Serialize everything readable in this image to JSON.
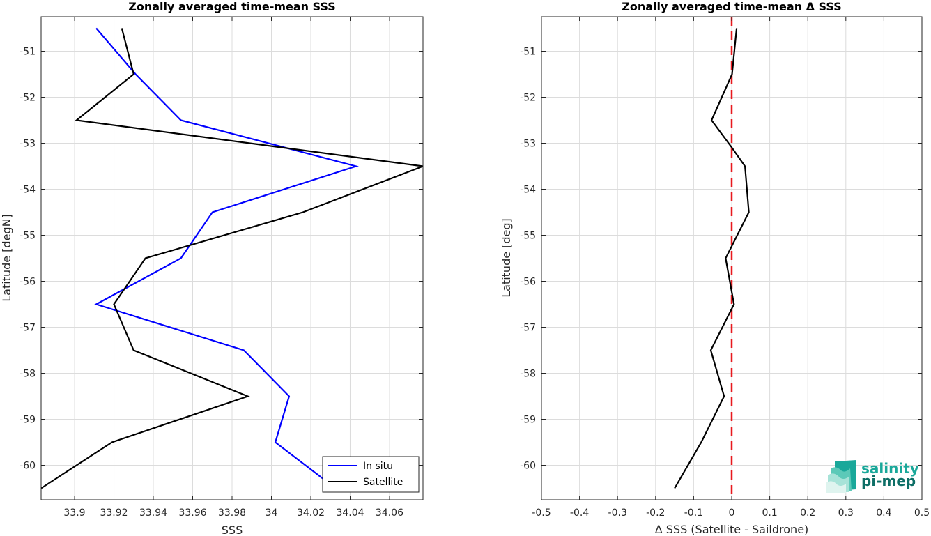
{
  "chart_data": [
    {
      "type": "line",
      "title": "Zonally averaged time-mean SSS",
      "xlabel": "SSS",
      "ylabel": "Latitude [degN]",
      "xlim": [
        33.883,
        34.077
      ],
      "ylim": [
        -60.75,
        -50.25
      ],
      "xticks": [
        33.9,
        33.92,
        33.94,
        33.96,
        33.98,
        34,
        34.02,
        34.04,
        34.06
      ],
      "xtick_labels": [
        "33.9",
        "33.92",
        "33.94",
        "33.96",
        "33.98",
        "34",
        "34.02",
        "34.04",
        "34.06"
      ],
      "yticks": [
        -51,
        -52,
        -53,
        -54,
        -55,
        -56,
        -57,
        -58,
        -59,
        -60
      ],
      "ytick_labels": [
        "-51",
        "-52",
        "-53",
        "-54",
        "-55",
        "-56",
        "-57",
        "-58",
        "-59",
        "-60"
      ],
      "grid": true,
      "legend_position": "bottom-right",
      "series": [
        {
          "name": "In situ",
          "color": "#0000ff",
          "points": [
            {
              "x": 33.911,
              "y": -50.5
            },
            {
              "x": 33.931,
              "y": -51.5
            },
            {
              "x": 33.954,
              "y": -52.5
            },
            {
              "x": 34.043,
              "y": -53.5
            },
            {
              "x": 33.97,
              "y": -54.5
            },
            {
              "x": 33.954,
              "y": -55.5
            },
            {
              "x": 33.911,
              "y": -56.5
            },
            {
              "x": 33.986,
              "y": -57.5
            },
            {
              "x": 34.009,
              "y": -58.5
            },
            {
              "x": 34.002,
              "y": -59.5
            },
            {
              "x": 34.028,
              "y": -60.35
            }
          ]
        },
        {
          "name": "Satellite",
          "color": "#000000",
          "points": [
            {
              "x": 33.924,
              "y": -50.5
            },
            {
              "x": 33.93,
              "y": -51.5
            },
            {
              "x": 33.901,
              "y": -52.5
            },
            {
              "x": 34.077,
              "y": -53.5
            },
            {
              "x": 34.016,
              "y": -54.5
            },
            {
              "x": 33.936,
              "y": -55.5
            },
            {
              "x": 33.92,
              "y": -56.5
            },
            {
              "x": 33.93,
              "y": -57.5
            },
            {
              "x": 33.988,
              "y": -58.5
            },
            {
              "x": 33.919,
              "y": -59.5
            },
            {
              "x": 33.883,
              "y": -60.5
            }
          ]
        }
      ]
    },
    {
      "type": "line",
      "title": "Zonally averaged time-mean Δ SSS",
      "xlabel": "Δ SSS (Satellite - Saildrone)",
      "ylabel": "Latitude [deg]",
      "xlim": [
        -0.5,
        0.5
      ],
      "ylim": [
        -60.75,
        -50.25
      ],
      "xticks": [
        -0.5,
        -0.4,
        -0.3,
        -0.2,
        -0.1,
        0,
        0.1,
        0.2,
        0.3,
        0.4,
        0.5
      ],
      "xtick_labels": [
        "-0.5",
        "-0.4",
        "-0.3",
        "-0.2",
        "-0.1",
        "0",
        "0.1",
        "0.2",
        "0.3",
        "0.4",
        "0.5"
      ],
      "yticks": [
        -51,
        -52,
        -53,
        -54,
        -55,
        -56,
        -57,
        -58,
        -59,
        -60
      ],
      "ytick_labels": [
        "-51",
        "-52",
        "-53",
        "-54",
        "-55",
        "-56",
        "-57",
        "-58",
        "-59",
        "-60"
      ],
      "grid": true,
      "reference_line": {
        "x": 0,
        "color": "#e8191e",
        "style": "dashed"
      },
      "series": [
        {
          "color": "#000000",
          "points": [
            {
              "x": 0.013,
              "y": -50.5
            },
            {
              "x": 0.001,
              "y": -51.5
            },
            {
              "x": -0.053,
              "y": -52.5
            },
            {
              "x": 0.001,
              "y": -53.1
            },
            {
              "x": 0.035,
              "y": -53.5
            },
            {
              "x": 0.045,
              "y": -54.5
            },
            {
              "x": -0.016,
              "y": -55.5
            },
            {
              "x": 0.006,
              "y": -56.5
            },
            {
              "x": -0.055,
              "y": -57.5
            },
            {
              "x": -0.02,
              "y": -58.5
            },
            {
              "x": -0.08,
              "y": -59.5
            },
            {
              "x": -0.15,
              "y": -60.5
            }
          ]
        }
      ]
    }
  ],
  "logo": {
    "line1": "salinity",
    "line2": "pi-mep",
    "color1": "#1aa89a",
    "color2": "#0d6e66"
  }
}
